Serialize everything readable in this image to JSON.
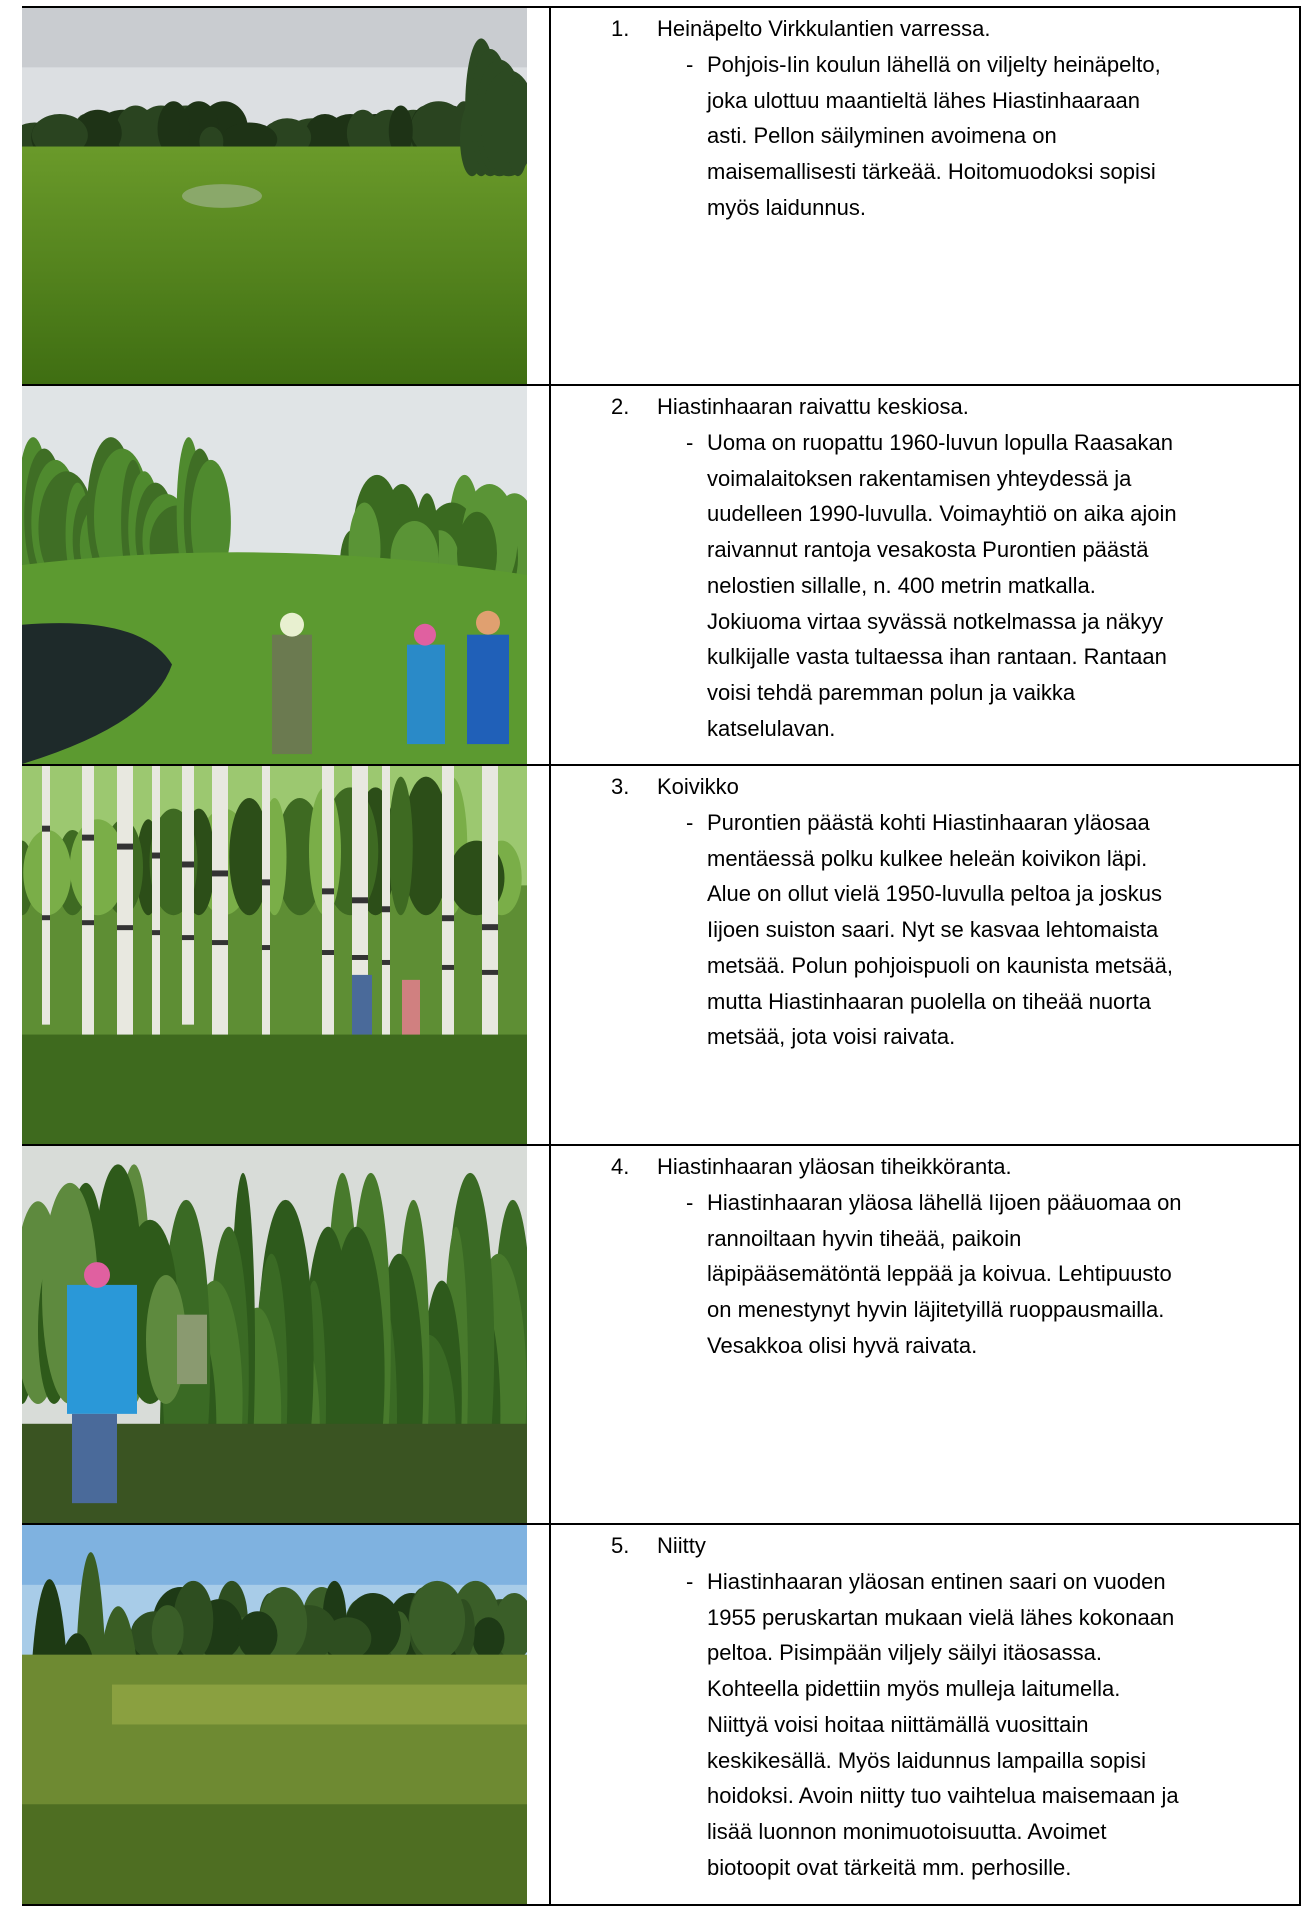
{
  "table": {
    "rows": [
      {
        "number": "1.",
        "title": "Heinäpelto Virkkulantien varressa.",
        "bullet": "-",
        "lines": [
          "Pohjois-Iin koulun lähellä on viljelty heinäpelto,",
          "joka ulottuu maantieltä lähes Hiastinhaaraan",
          "asti. Pellon säilyminen avoimena on",
          "maisemallisesti tärkeää. Hoitomuodoksi sopisi",
          "myös laidunnus."
        ]
      },
      {
        "number": "2.",
        "title": "Hiastinhaaran raivattu keskiosa.",
        "bullet": "-",
        "lines": [
          "Uoma on ruopattu 1960-luvun lopulla Raasakan",
          "voimalaitoksen rakentamisen yhteydessä ja",
          "uudelleen 1990-luvulla. Voimayhtiö on aika ajoin",
          "raivannut rantoja vesakosta Purontien päästä",
          "nelostien sillalle, n. 400 metrin matkalla.",
          "Jokiuoma virtaa syvässä notkelmassa ja näkyy",
          "kulkijalle vasta tultaessa ihan rantaan. Rantaan",
          "voisi tehdä paremman polun ja vaikka",
          "katselulavan."
        ]
      },
      {
        "number": "3.",
        "title": "Koivikko",
        "bullet": "-",
        "lines": [
          "Purontien päästä kohti Hiastinhaaran yläosaa",
          "mentäessä polku kulkee heleän koivikon läpi.",
          "Alue on ollut vielä 1950-luvulla peltoa ja joskus",
          "Iijoen suiston saari. Nyt se kasvaa lehtomaista",
          "metsää. Polun pohjoispuoli on kaunista metsää,",
          "mutta Hiastinhaaran puolella on tiheää nuorta",
          "metsää, jota voisi raivata."
        ]
      },
      {
        "number": "4.",
        "title": "Hiastinhaaran yläosan tiheikköranta.",
        "bullet": "-",
        "lines": [
          "Hiastinhaaran yläosa lähellä Iijoen pääuomaa on",
          "rannoiltaan hyvin tiheää, paikoin",
          "läpipääsemätöntä leppää ja koivua. Lehtipuusto",
          "on menestynyt hyvin läjitetyillä ruoppausmailla.",
          "Vesakkoa olisi hyvä raivata."
        ]
      },
      {
        "number": "5.",
        "title": "Niitty",
        "bullet": "-",
        "lines": [
          "Hiastinhaaran yläosan entinen saari on vuoden",
          "1955 peruskartan mukaan vielä lähes kokonaan",
          "peltoa. Pisimpään viljely säilyi itäosassa.",
          "Kohteella pidettiin myös mulleja laitumella.",
          "Niittyä voisi hoitaa niittämällä vuosittain",
          "keskikesällä. Myös laidunnus lampailla sopisi",
          "hoidoksi. Avoin niitty tuo vaihtelua maisemaan ja",
          "lisää luonnon monimuotoisuutta. Avoimet",
          "biotoopit ovat tärkeitä mm. perhosille."
        ]
      }
    ]
  }
}
